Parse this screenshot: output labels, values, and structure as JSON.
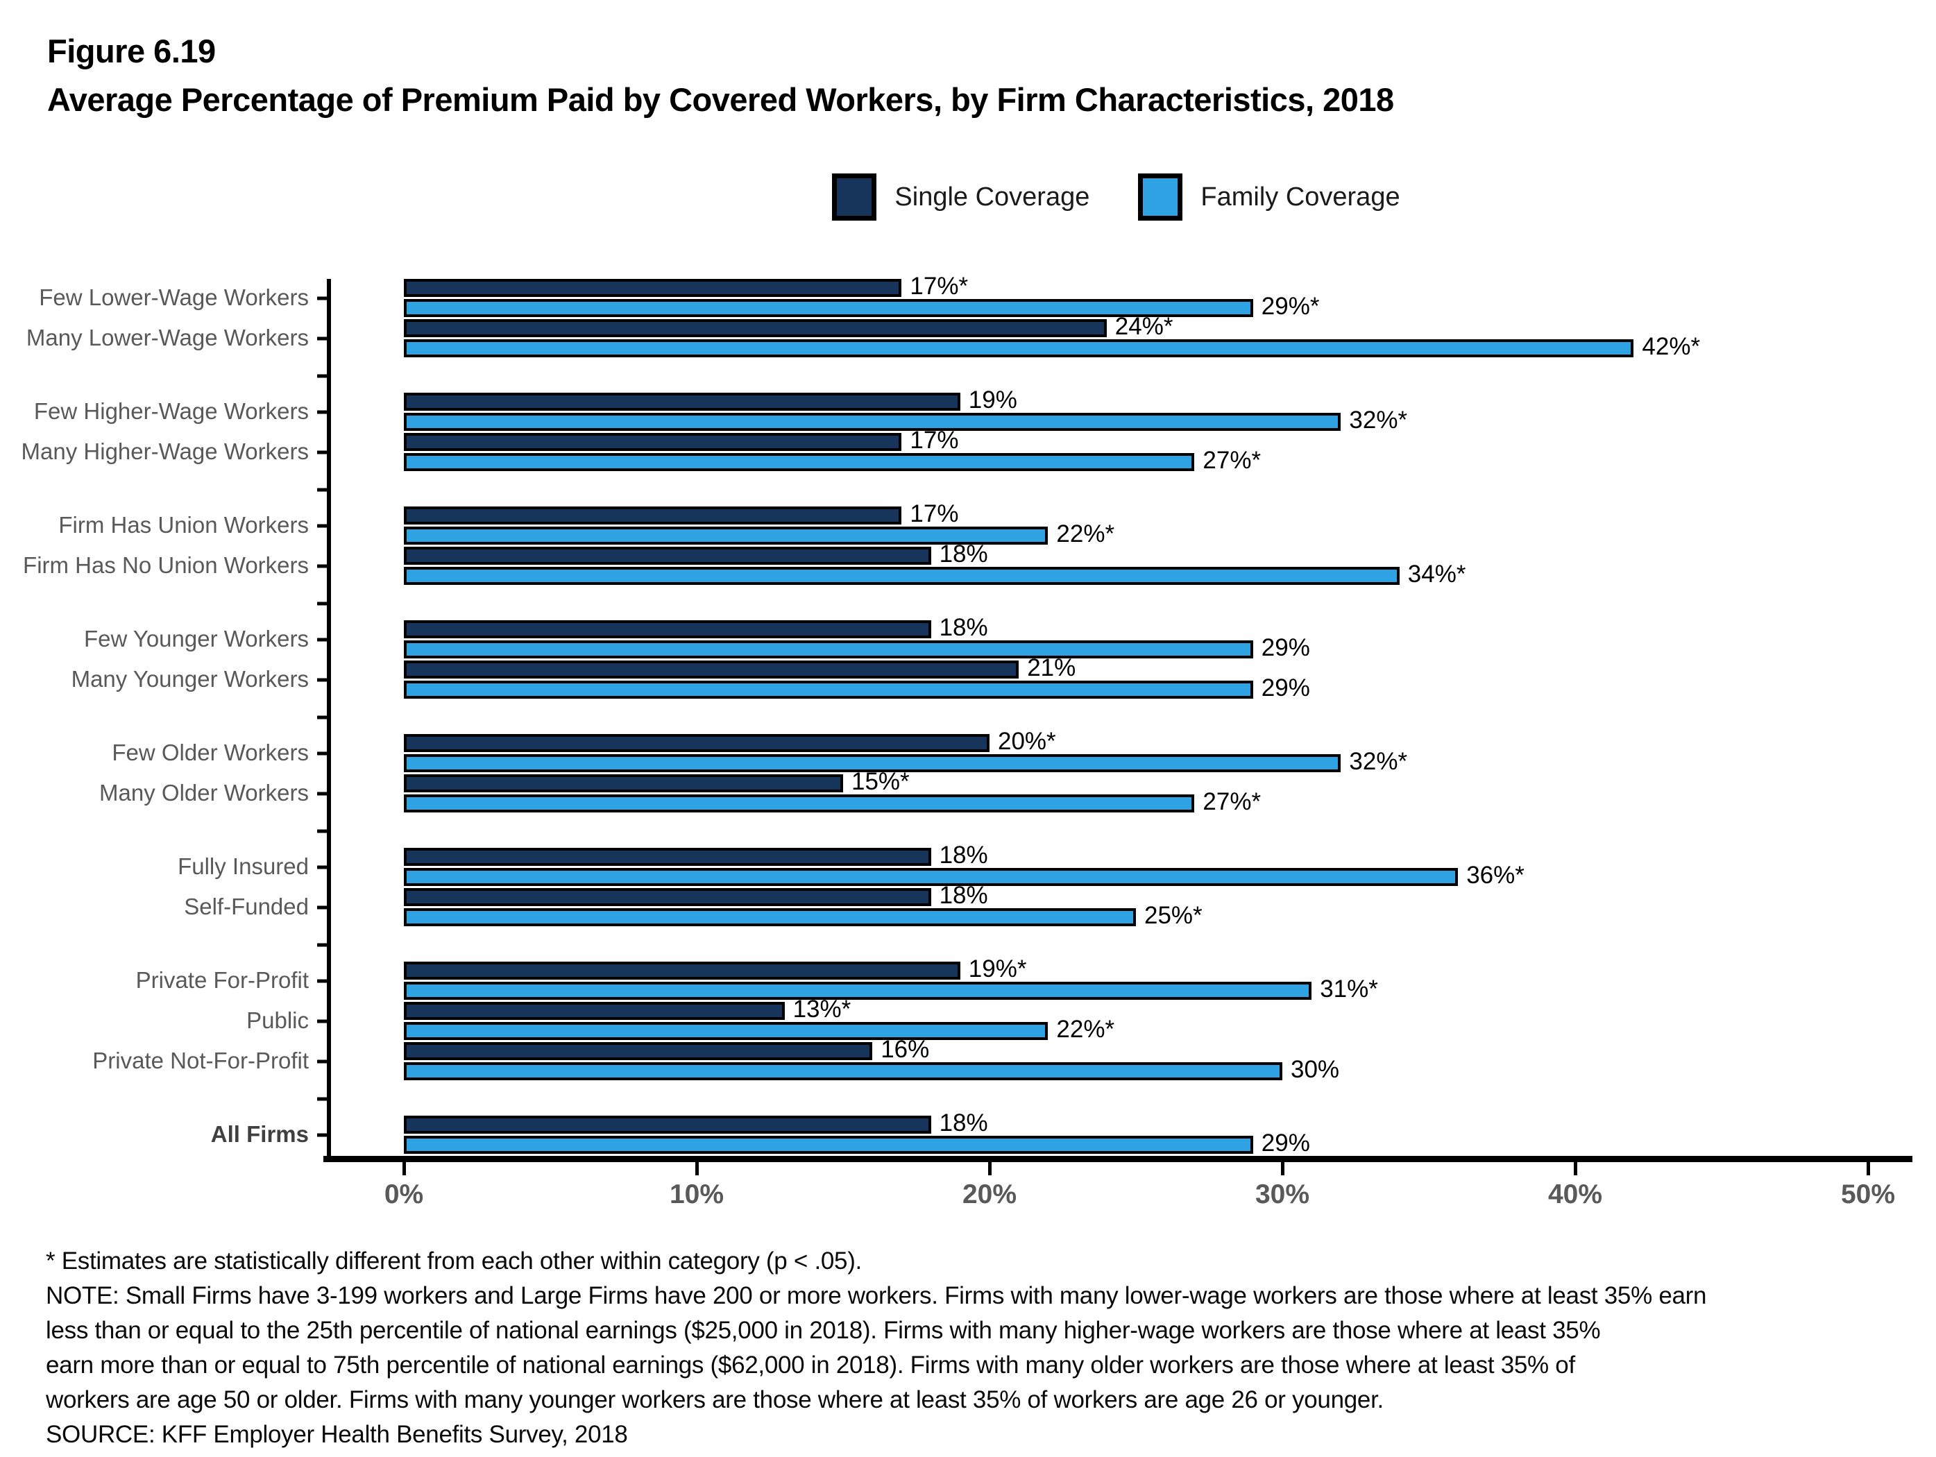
{
  "figure": {
    "number": "Figure 6.19",
    "title": "Average Percentage of Premium Paid by Covered Workers, by Firm Characteristics, 2018"
  },
  "legend": {
    "items": [
      {
        "label": "Single Coverage",
        "color": "#17355A"
      },
      {
        "label": "Family Coverage",
        "color": "#2FA2E3"
      }
    ]
  },
  "chart_data": {
    "type": "bar",
    "orientation": "horizontal",
    "series": [
      "Single Coverage",
      "Family Coverage"
    ],
    "unit": "percent of premium paid by covered workers",
    "xlim": [
      0,
      50
    ],
    "grid": false,
    "single_color": "#17355A",
    "family_color": "#2FA2E3",
    "x_ticks": [
      {
        "value": 0,
        "label": "0%"
      },
      {
        "value": 10,
        "label": "10%"
      },
      {
        "value": 20,
        "label": "20%"
      },
      {
        "value": 30,
        "label": "30%"
      },
      {
        "value": 40,
        "label": "40%"
      },
      {
        "value": 50,
        "label": "50%"
      }
    ],
    "groups": [
      {
        "categories": [
          {
            "label": "Few Lower-Wage Workers",
            "single": 17,
            "single_label": "17%*",
            "family": 29,
            "family_label": "29%*"
          },
          {
            "label": "Many Lower-Wage Workers",
            "single": 24,
            "single_label": "24%*",
            "family": 42,
            "family_label": "42%*"
          }
        ]
      },
      {
        "categories": [
          {
            "label": "Few Higher-Wage Workers",
            "single": 19,
            "single_label": "19%",
            "family": 32,
            "family_label": "32%*"
          },
          {
            "label": "Many Higher-Wage Workers",
            "single": 17,
            "single_label": "17%",
            "family": 27,
            "family_label": "27%*"
          }
        ]
      },
      {
        "categories": [
          {
            "label": "Firm Has Union Workers",
            "single": 17,
            "single_label": "17%",
            "family": 22,
            "family_label": "22%*"
          },
          {
            "label": "Firm Has No Union Workers",
            "single": 18,
            "single_label": "18%",
            "family": 34,
            "family_label": "34%*"
          }
        ]
      },
      {
        "categories": [
          {
            "label": "Few Younger Workers",
            "single": 18,
            "single_label": "18%",
            "family": 29,
            "family_label": "29%"
          },
          {
            "label": "Many Younger Workers",
            "single": 21,
            "single_label": "21%",
            "family": 29,
            "family_label": "29%"
          }
        ]
      },
      {
        "categories": [
          {
            "label": "Few Older Workers",
            "single": 20,
            "single_label": "20%*",
            "family": 32,
            "family_label": "32%*"
          },
          {
            "label": "Many Older Workers",
            "single": 15,
            "single_label": "15%*",
            "family": 27,
            "family_label": "27%*"
          }
        ]
      },
      {
        "categories": [
          {
            "label": "Fully Insured",
            "single": 18,
            "single_label": "18%",
            "family": 36,
            "family_label": "36%*"
          },
          {
            "label": "Self-Funded",
            "single": 18,
            "single_label": "18%",
            "family": 25,
            "family_label": "25%*"
          }
        ]
      },
      {
        "categories": [
          {
            "label": "Private For-Profit",
            "single": 19,
            "single_label": "19%*",
            "family": 31,
            "family_label": "31%*"
          },
          {
            "label": "Public",
            "single": 13,
            "single_label": "13%*",
            "family": 22,
            "family_label": "22%*"
          },
          {
            "label": "Private Not-For-Profit",
            "single": 16,
            "single_label": "16%",
            "family": 30,
            "family_label": "30%"
          }
        ]
      },
      {
        "categories": [
          {
            "label": "All Firms",
            "bold": true,
            "single": 18,
            "single_label": "18%",
            "family": 29,
            "family_label": "29%"
          }
        ]
      }
    ]
  },
  "footnotes": {
    "lines": [
      "* Estimates are statistically different from each other within category (p < .05).",
      "NOTE: Small Firms have 3-199 workers and Large Firms have 200 or more workers. Firms with many lower-wage workers are those where at least 35% earn",
      "less than or equal to the 25th percentile of national earnings ($25,000 in 2018). Firms with many higher-wage workers are those where at least 35%",
      "earn more than or equal to 75th percentile of national earnings ($62,000 in 2018). Firms with many older workers are those where at least 35% of",
      "workers are age 50 or older. Firms with many younger workers are those where at least 35% of workers are age 26 or younger.",
      "SOURCE: KFF Employer Health Benefits Survey, 2018"
    ]
  }
}
